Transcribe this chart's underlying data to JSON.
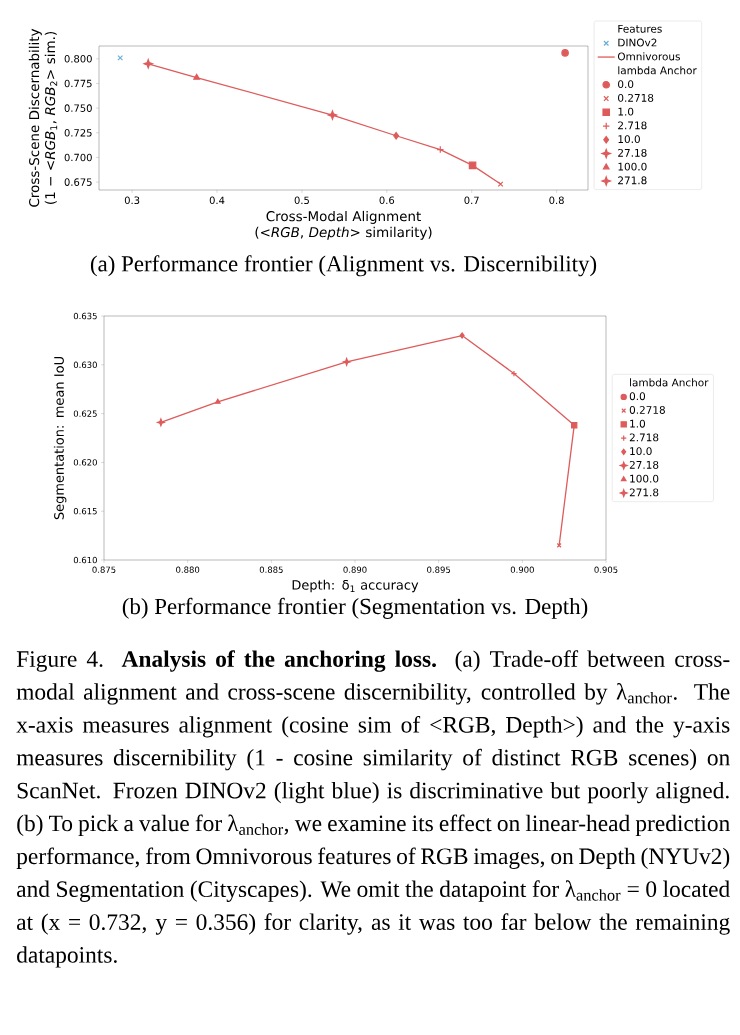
{
  "chart_data": [
    {
      "type": "scatter",
      "title": "(a) Performance frontier (Alignment vs. Discernibility)",
      "xlabel": "Cross-Modal Alignment (<*RGB*, *Depth*> similarity)",
      "ylabel": "Cross-Scene Discernability (1 − <*RGB*$_{1}$, *RGB*$_{2}$> sim.)",
      "legend_title": [
        "Features",
        "lambda Anchor"
      ],
      "legend": "right",
      "xlim": [
        0.261,
        0.837
      ],
      "ylim": [
        0.667,
        0.813
      ],
      "xticks": [
        0.3,
        0.4,
        0.5,
        0.6,
        0.7,
        0.8
      ],
      "yticks": [
        {
          "value": 0.675,
          "label": "0.675"
        },
        {
          "value": 0.7,
          "label": "0.700"
        },
        {
          "value": 0.725,
          "label": "0.725"
        },
        {
          "value": 0.75,
          "label": "0.750"
        },
        {
          "value": 0.775,
          "label": "0.775"
        },
        {
          "value": 0.8,
          "label": "0.800"
        }
      ],
      "series": [
        {
          "name": "DINOv2",
          "color": "#6aaed6",
          "marker": "cross",
          "x": [
            0.286
          ],
          "values": [
            0.801
          ]
        },
        {
          "name": "Omnivorous",
          "type": "line",
          "color": "#de5b5b",
          "marker": "none",
          "x": [
            0.319,
            0.376,
            0.536,
            0.611,
            0.663,
            0.701,
            0.734
          ],
          "values": [
            0.795,
            0.781,
            0.743,
            0.722,
            0.708,
            0.692,
            0.673
          ]
        },
        {
          "name": "0.0",
          "color": "#de5b5b",
          "marker": "circle",
          "x": [
            0.81
          ],
          "values": [
            0.806
          ]
        },
        {
          "name": "0.2718",
          "color": "#de5b5b",
          "marker": "cross",
          "x": [
            0.734
          ],
          "values": [
            0.673
          ]
        },
        {
          "name": "1.0",
          "color": "#de5b5b",
          "marker": "square",
          "x": [
            0.701
          ],
          "values": [
            0.692
          ]
        },
        {
          "name": "2.718",
          "color": "#de5b5b",
          "marker": "plus",
          "x": [
            0.663
          ],
          "values": [
            0.708
          ]
        },
        {
          "name": "10.0",
          "color": "#de5b5b",
          "marker": "diamond",
          "x": [
            0.611
          ],
          "values": [
            0.722
          ]
        },
        {
          "name": "27.18",
          "color": "#de5b5b",
          "marker": "star",
          "x": [
            0.536
          ],
          "values": [
            0.743
          ]
        },
        {
          "name": "100.0",
          "color": "#de5b5b",
          "marker": "triangle",
          "x": [
            0.376
          ],
          "values": [
            0.781
          ]
        },
        {
          "name": "271.8",
          "color": "#de5b5b",
          "marker": "star",
          "x": [
            0.319
          ],
          "values": [
            0.795
          ]
        }
      ]
    },
    {
      "type": "scatter",
      "title": "(b) Performance frontier (Segmentation vs. Depth)",
      "xlabel": "Depth: δ$_{1}$ accuracy",
      "ylabel": "Segmentation: mean IoU",
      "legend_title": [
        "lambda Anchor"
      ],
      "legend": "right",
      "xlim": [
        0.875,
        0.905
      ],
      "ylim": [
        0.61,
        0.635
      ],
      "xticks": [
        0.875,
        {
          "value": 0.88,
          "label": "0.880"
        },
        0.885,
        {
          "value": 0.89,
          "label": "0.890"
        },
        0.895,
        {
          "value": 0.9,
          "label": "0.900"
        },
        0.905
      ],
      "yticks": [
        {
          "value": 0.61,
          "label": "0.610"
        },
        0.615,
        {
          "value": 0.62,
          "label": "0.620"
        },
        0.625,
        {
          "value": 0.63,
          "label": "0.630"
        },
        0.635
      ],
      "annotations": [
        "Figure 4. **Analysis of the anchoring loss.** (a) Trade-off between cross-modal alignment and cross-scene discernibility, controlled by λ$_{anchor}$. The x-axis measures alignment (cosine sim of <RGB, Depth>) and the y-axis measures discernibility (1 - cosine similarity of distinct RGB scenes) on ScanNet. Frozen DINOv2 (light blue) is discriminative but poorly aligned. (b) To pick a value for λ$_{anchor}$, we examine its effect on linear-head prediction performance, from Omnivorous features of RGB images, on Depth (NYUv2) and Segmentation (Cityscapes). We omit the datapoint for λ$_{anchor}$ = 0 located at (x = 0.732, y = 0.356) for clarity, as it was too far below the remaining datapoints."
      ],
      "series": [
        {
          "type": "line",
          "color": "#de5b5b",
          "marker": "none",
          "x": [
            0.8784,
            0.8818,
            0.8895,
            0.8964,
            0.8995,
            0.9031,
            0.9022
          ],
          "values": [
            0.6241,
            0.6262,
            0.6303,
            0.633,
            0.6291,
            0.6238,
            0.6115
          ]
        },
        {
          "name": "0.0",
          "color": "#de5b5b",
          "marker": "circle"
        },
        {
          "name": "0.2718",
          "color": "#de5b5b",
          "marker": "cross",
          "x": [
            0.9022
          ],
          "values": [
            0.6115
          ]
        },
        {
          "name": "1.0",
          "color": "#de5b5b",
          "marker": "square",
          "x": [
            0.9031
          ],
          "values": [
            0.6238
          ]
        },
        {
          "name": "2.718",
          "color": "#de5b5b",
          "marker": "plus",
          "x": [
            0.8995
          ],
          "values": [
            0.6291
          ]
        },
        {
          "name": "10.0",
          "color": "#de5b5b",
          "marker": "diamond",
          "x": [
            0.8964
          ],
          "values": [
            0.633
          ]
        },
        {
          "name": "27.18",
          "color": "#de5b5b",
          "marker": "star",
          "x": [
            0.8895
          ],
          "values": [
            0.6303
          ]
        },
        {
          "name": "100.0",
          "color": "#de5b5b",
          "marker": "triangle",
          "x": [
            0.8818
          ],
          "values": [
            0.6262
          ]
        },
        {
          "name": "271.8",
          "color": "#de5b5b",
          "marker": "star",
          "x": [
            0.8784
          ],
          "values": [
            0.6241
          ]
        }
      ]
    }
  ]
}
